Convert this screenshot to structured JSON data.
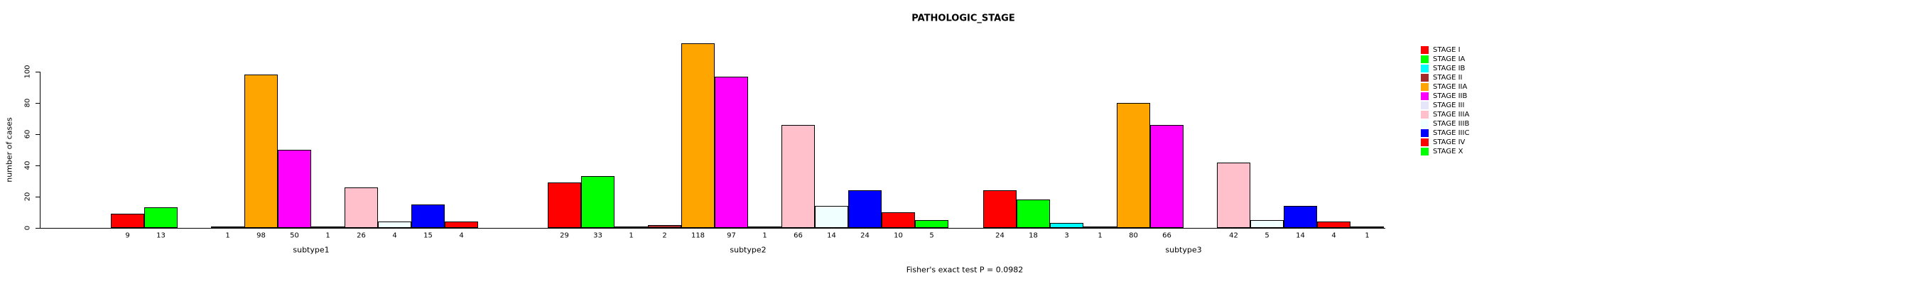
{
  "title": "PATHOLOGIC_STAGE",
  "caption": "Fisher's exact test P = 0.0982",
  "chart_data": {
    "type": "bar",
    "title": "PATHOLOGIC_STAGE",
    "ylabel": "number of cases",
    "xlabel": "",
    "categories": [
      "subtype1",
      "subtype2",
      "subtype3"
    ],
    "ylim": [
      0,
      100
    ],
    "yticks": [
      0,
      20,
      40,
      60,
      80,
      100
    ],
    "grid": "off",
    "legend_position": "right",
    "bar_value_labels_shown": true,
    "series": [
      {
        "name": "STAGE I",
        "color": "#FF0000",
        "values": [
          9,
          29,
          24
        ]
      },
      {
        "name": "STAGE IA",
        "color": "#00FF00",
        "values": [
          13,
          33,
          18
        ]
      },
      {
        "name": "STAGE IB",
        "color": "#00FFFF",
        "values": [
          null,
          1,
          3
        ]
      },
      {
        "name": "STAGE II",
        "color": "#A52A2A",
        "values": [
          1,
          2,
          1
        ]
      },
      {
        "name": "STAGE IIA",
        "color": "#FFA500",
        "values": [
          98,
          118,
          80
        ]
      },
      {
        "name": "STAGE IIB",
        "color": "#FF00FF",
        "values": [
          50,
          97,
          66
        ]
      },
      {
        "name": "STAGE III",
        "color": "#E6E6FA",
        "values": [
          1,
          1,
          null
        ]
      },
      {
        "name": "STAGE IIIA",
        "color": "#FFC0CB",
        "values": [
          26,
          66,
          42
        ]
      },
      {
        "name": "STAGE IIIB",
        "color": "#F0FFFF",
        "values": [
          4,
          14,
          5
        ]
      },
      {
        "name": "STAGE IIIC",
        "color": "#0000FF",
        "values": [
          15,
          24,
          14
        ]
      },
      {
        "name": "STAGE IV",
        "color": "#FF0000",
        "values": [
          4,
          10,
          4
        ]
      },
      {
        "name": "STAGE X",
        "color": "#00FF00",
        "values": [
          null,
          5,
          1
        ]
      }
    ]
  }
}
